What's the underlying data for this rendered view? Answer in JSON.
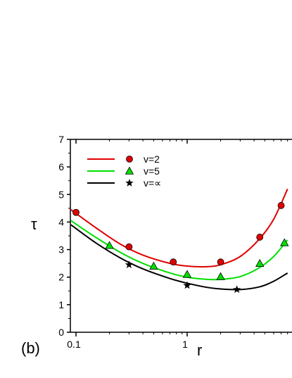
{
  "chart_data": {
    "type": "scatter",
    "panel_label": "(b)",
    "xlabel": "r",
    "ylabel": "τ",
    "x_scale": "log",
    "xlim": [
      0.09,
      8
    ],
    "ylim": [
      0,
      7
    ],
    "x_tick_labels": [
      "0.1",
      "1"
    ],
    "y_tick_labels": [
      "0",
      "1",
      "2",
      "3",
      "4",
      "5",
      "6",
      "7"
    ],
    "legend_position": "top-left",
    "series": [
      {
        "name": "v=2",
        "color": "#e00000",
        "marker": "circle",
        "points": [
          [
            0.1,
            4.35
          ],
          [
            0.3,
            3.1
          ],
          [
            0.75,
            2.55
          ],
          [
            2.0,
            2.55
          ],
          [
            4.5,
            3.45
          ],
          [
            7.0,
            4.6
          ]
        ],
        "fit": [
          [
            0.09,
            4.45
          ],
          [
            0.15,
            3.8
          ],
          [
            0.25,
            3.2
          ],
          [
            0.4,
            2.8
          ],
          [
            0.7,
            2.5
          ],
          [
            1.0,
            2.4
          ],
          [
            1.5,
            2.38
          ],
          [
            2.0,
            2.45
          ],
          [
            3.0,
            2.75
          ],
          [
            4.5,
            3.4
          ],
          [
            6.0,
            4.1
          ],
          [
            8.0,
            5.2
          ]
        ]
      },
      {
        "name": "v=5",
        "color": "#00e000",
        "marker": "triangle",
        "points": [
          [
            0.2,
            3.15
          ],
          [
            0.5,
            2.4
          ],
          [
            1.0,
            2.1
          ],
          [
            2.0,
            2.02
          ],
          [
            4.5,
            2.5
          ],
          [
            7.5,
            3.25
          ]
        ],
        "fit": [
          [
            0.09,
            4.05
          ],
          [
            0.15,
            3.45
          ],
          [
            0.25,
            2.9
          ],
          [
            0.4,
            2.5
          ],
          [
            0.7,
            2.15
          ],
          [
            1.0,
            2.0
          ],
          [
            1.5,
            1.92
          ],
          [
            2.0,
            1.92
          ],
          [
            3.0,
            2.02
          ],
          [
            4.5,
            2.35
          ],
          [
            6.0,
            2.75
          ],
          [
            8.0,
            3.35
          ]
        ]
      },
      {
        "name": "v=∝",
        "color": "#000000",
        "marker": "star",
        "points": [
          [
            0.3,
            2.45
          ],
          [
            1.0,
            1.7
          ],
          [
            2.8,
            1.55
          ]
        ],
        "fit": [
          [
            0.09,
            3.9
          ],
          [
            0.15,
            3.25
          ],
          [
            0.25,
            2.7
          ],
          [
            0.4,
            2.3
          ],
          [
            0.7,
            1.95
          ],
          [
            1.0,
            1.78
          ],
          [
            1.5,
            1.63
          ],
          [
            2.0,
            1.57
          ],
          [
            3.0,
            1.55
          ],
          [
            4.5,
            1.65
          ],
          [
            6.0,
            1.85
          ],
          [
            8.0,
            2.15
          ]
        ]
      }
    ]
  }
}
